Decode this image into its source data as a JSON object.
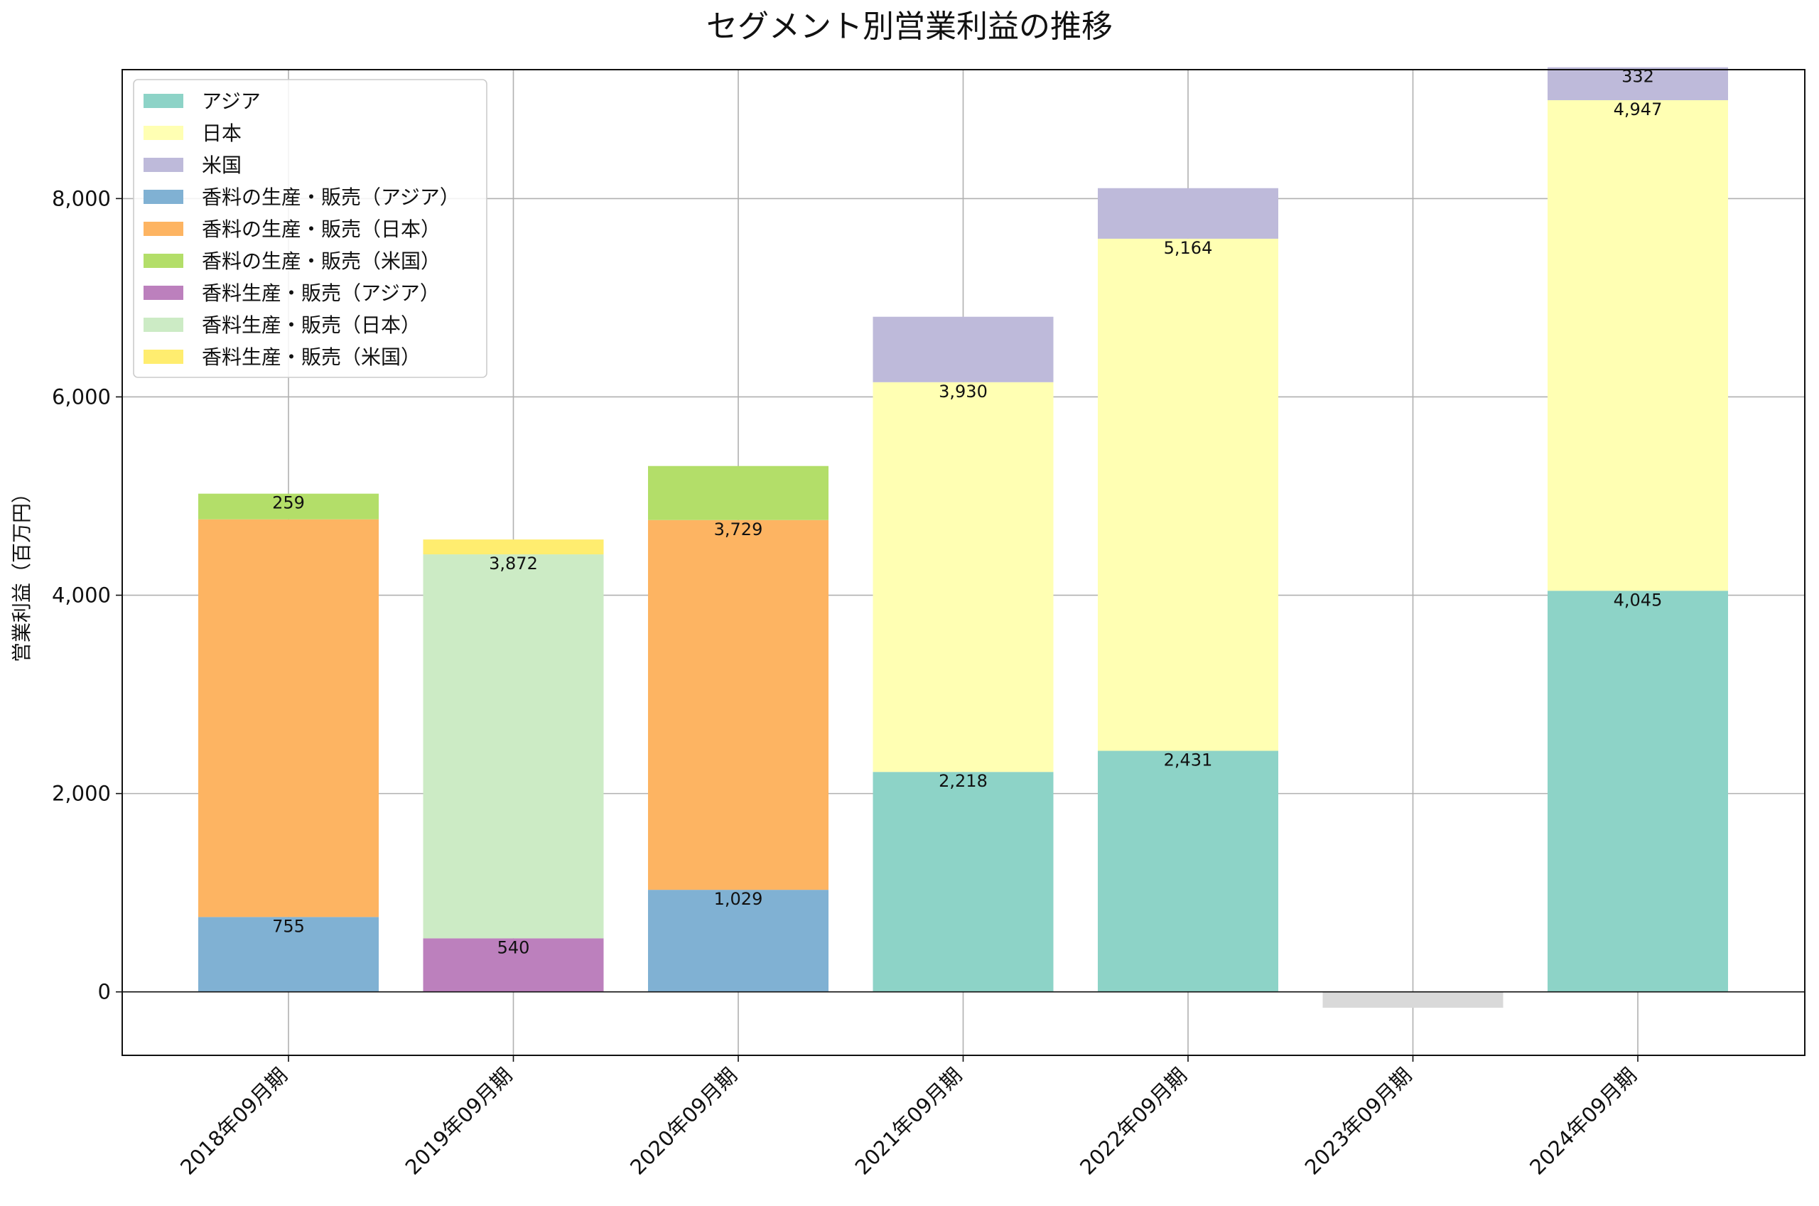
{
  "chart_data": {
    "type": "bar",
    "stacked": true,
    "title": "セグメント別営業利益の推移",
    "xlabel": "",
    "ylabel": "営業利益（百万円）",
    "ylim": [
      -640,
      9300
    ],
    "yticks": [
      0,
      2000,
      4000,
      6000,
      8000
    ],
    "ytick_labels": [
      "0",
      "2,000",
      "4,000",
      "6,000",
      "8,000"
    ],
    "grid": true,
    "legend_position": "top-left",
    "categories": [
      "2018年09月期",
      "2019年09月期",
      "2020年09月期",
      "2021年09月期",
      "2022年09月期",
      "2023年09月期",
      "2024年09月期"
    ],
    "series": [
      {
        "name": "アジア",
        "color": "#8dd3c7",
        "values": [
          null,
          null,
          null,
          2218,
          2431,
          null,
          4045
        ]
      },
      {
        "name": "日本",
        "color": "#ffffb3",
        "values": [
          null,
          null,
          null,
          3930,
          5164,
          null,
          4947
        ]
      },
      {
        "name": "米国",
        "color": "#bebada",
        "values": [
          null,
          null,
          null,
          660,
          510,
          null,
          332
        ]
      },
      {
        "name": "香料の生産・販売（アジア）",
        "color": "#80b1d3",
        "values": [
          755,
          null,
          1029,
          null,
          null,
          null,
          null
        ]
      },
      {
        "name": "香料の生産・販売（日本）",
        "color": "#fdb462",
        "values": [
          4010,
          null,
          3729,
          null,
          null,
          null,
          null
        ]
      },
      {
        "name": "香料の生産・販売（米国）",
        "color": "#b3de69",
        "values": [
          259,
          null,
          545,
          null,
          null,
          null,
          null
        ]
      },
      {
        "name": "香料生産・販売（アジア）",
        "color": "#bc80bd",
        "values": [
          null,
          540,
          null,
          null,
          null,
          null,
          null
        ]
      },
      {
        "name": "香料生産・販売（日本）",
        "color": "#ccebc5",
        "values": [
          null,
          3872,
          null,
          null,
          null,
          null,
          null
        ]
      },
      {
        "name": "香料生産・販売（米国）",
        "color": "#ffed6f",
        "values": [
          null,
          150,
          null,
          null,
          null,
          null,
          null
        ]
      },
      {
        "name": "",
        "color": "#d9d9d9",
        "values": [
          null,
          null,
          null,
          null,
          null,
          -160,
          null
        ],
        "in_legend": false
      }
    ],
    "data_labels": [
      {
        "category": 0,
        "series": 3,
        "text": "755"
      },
      {
        "category": 0,
        "series": 5,
        "text": "259"
      },
      {
        "category": 1,
        "series": 6,
        "text": "540"
      },
      {
        "category": 1,
        "series": 7,
        "text": "3,872"
      },
      {
        "category": 2,
        "series": 3,
        "text": "1,029"
      },
      {
        "category": 2,
        "series": 4,
        "text": "3,729"
      },
      {
        "category": 3,
        "series": 0,
        "text": "2,218"
      },
      {
        "category": 3,
        "series": 1,
        "text": "3,930"
      },
      {
        "category": 4,
        "series": 0,
        "text": "2,431"
      },
      {
        "category": 4,
        "series": 1,
        "text": "5,164"
      },
      {
        "category": 6,
        "series": 0,
        "text": "4,045"
      },
      {
        "category": 6,
        "series": 1,
        "text": "4,947"
      },
      {
        "category": 6,
        "series": 2,
        "text": "332"
      }
    ]
  }
}
